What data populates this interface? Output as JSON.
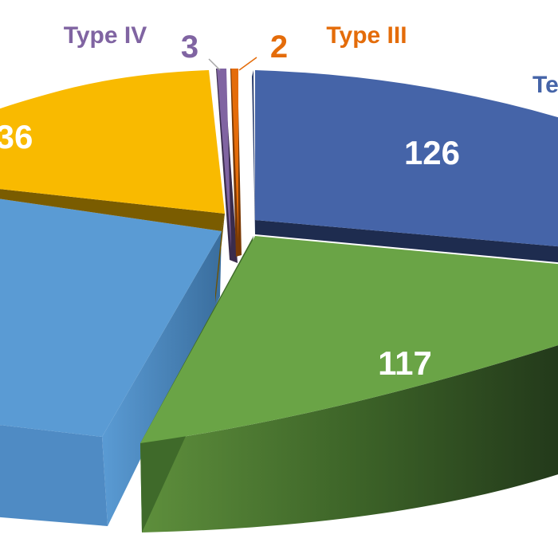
{
  "chart_data": {
    "type": "pie",
    "style": "3d-exploded",
    "slices": [
      {
        "label": "Te",
        "value": 126,
        "color": "#4564A8",
        "side_color": "#1E2C4F"
      },
      {
        "label": "",
        "value": 117,
        "color": "#6AA446",
        "side_color": "#2C4A1C"
      },
      {
        "label": "",
        "value": null,
        "color": "#5A9BD4",
        "side_color": "#3D74A8"
      },
      {
        "label": "",
        "value": 36,
        "value_text": "36",
        "color": "#F9BA00",
        "side_color": "#6E5200"
      },
      {
        "label": "Type IV",
        "value": 3,
        "color": "#8064A2",
        "side_color": "#3A2C4C"
      },
      {
        "label": "Type III",
        "value": 2,
        "color": "#E46C0A",
        "side_color": "#7A3A05"
      }
    ]
  }
}
